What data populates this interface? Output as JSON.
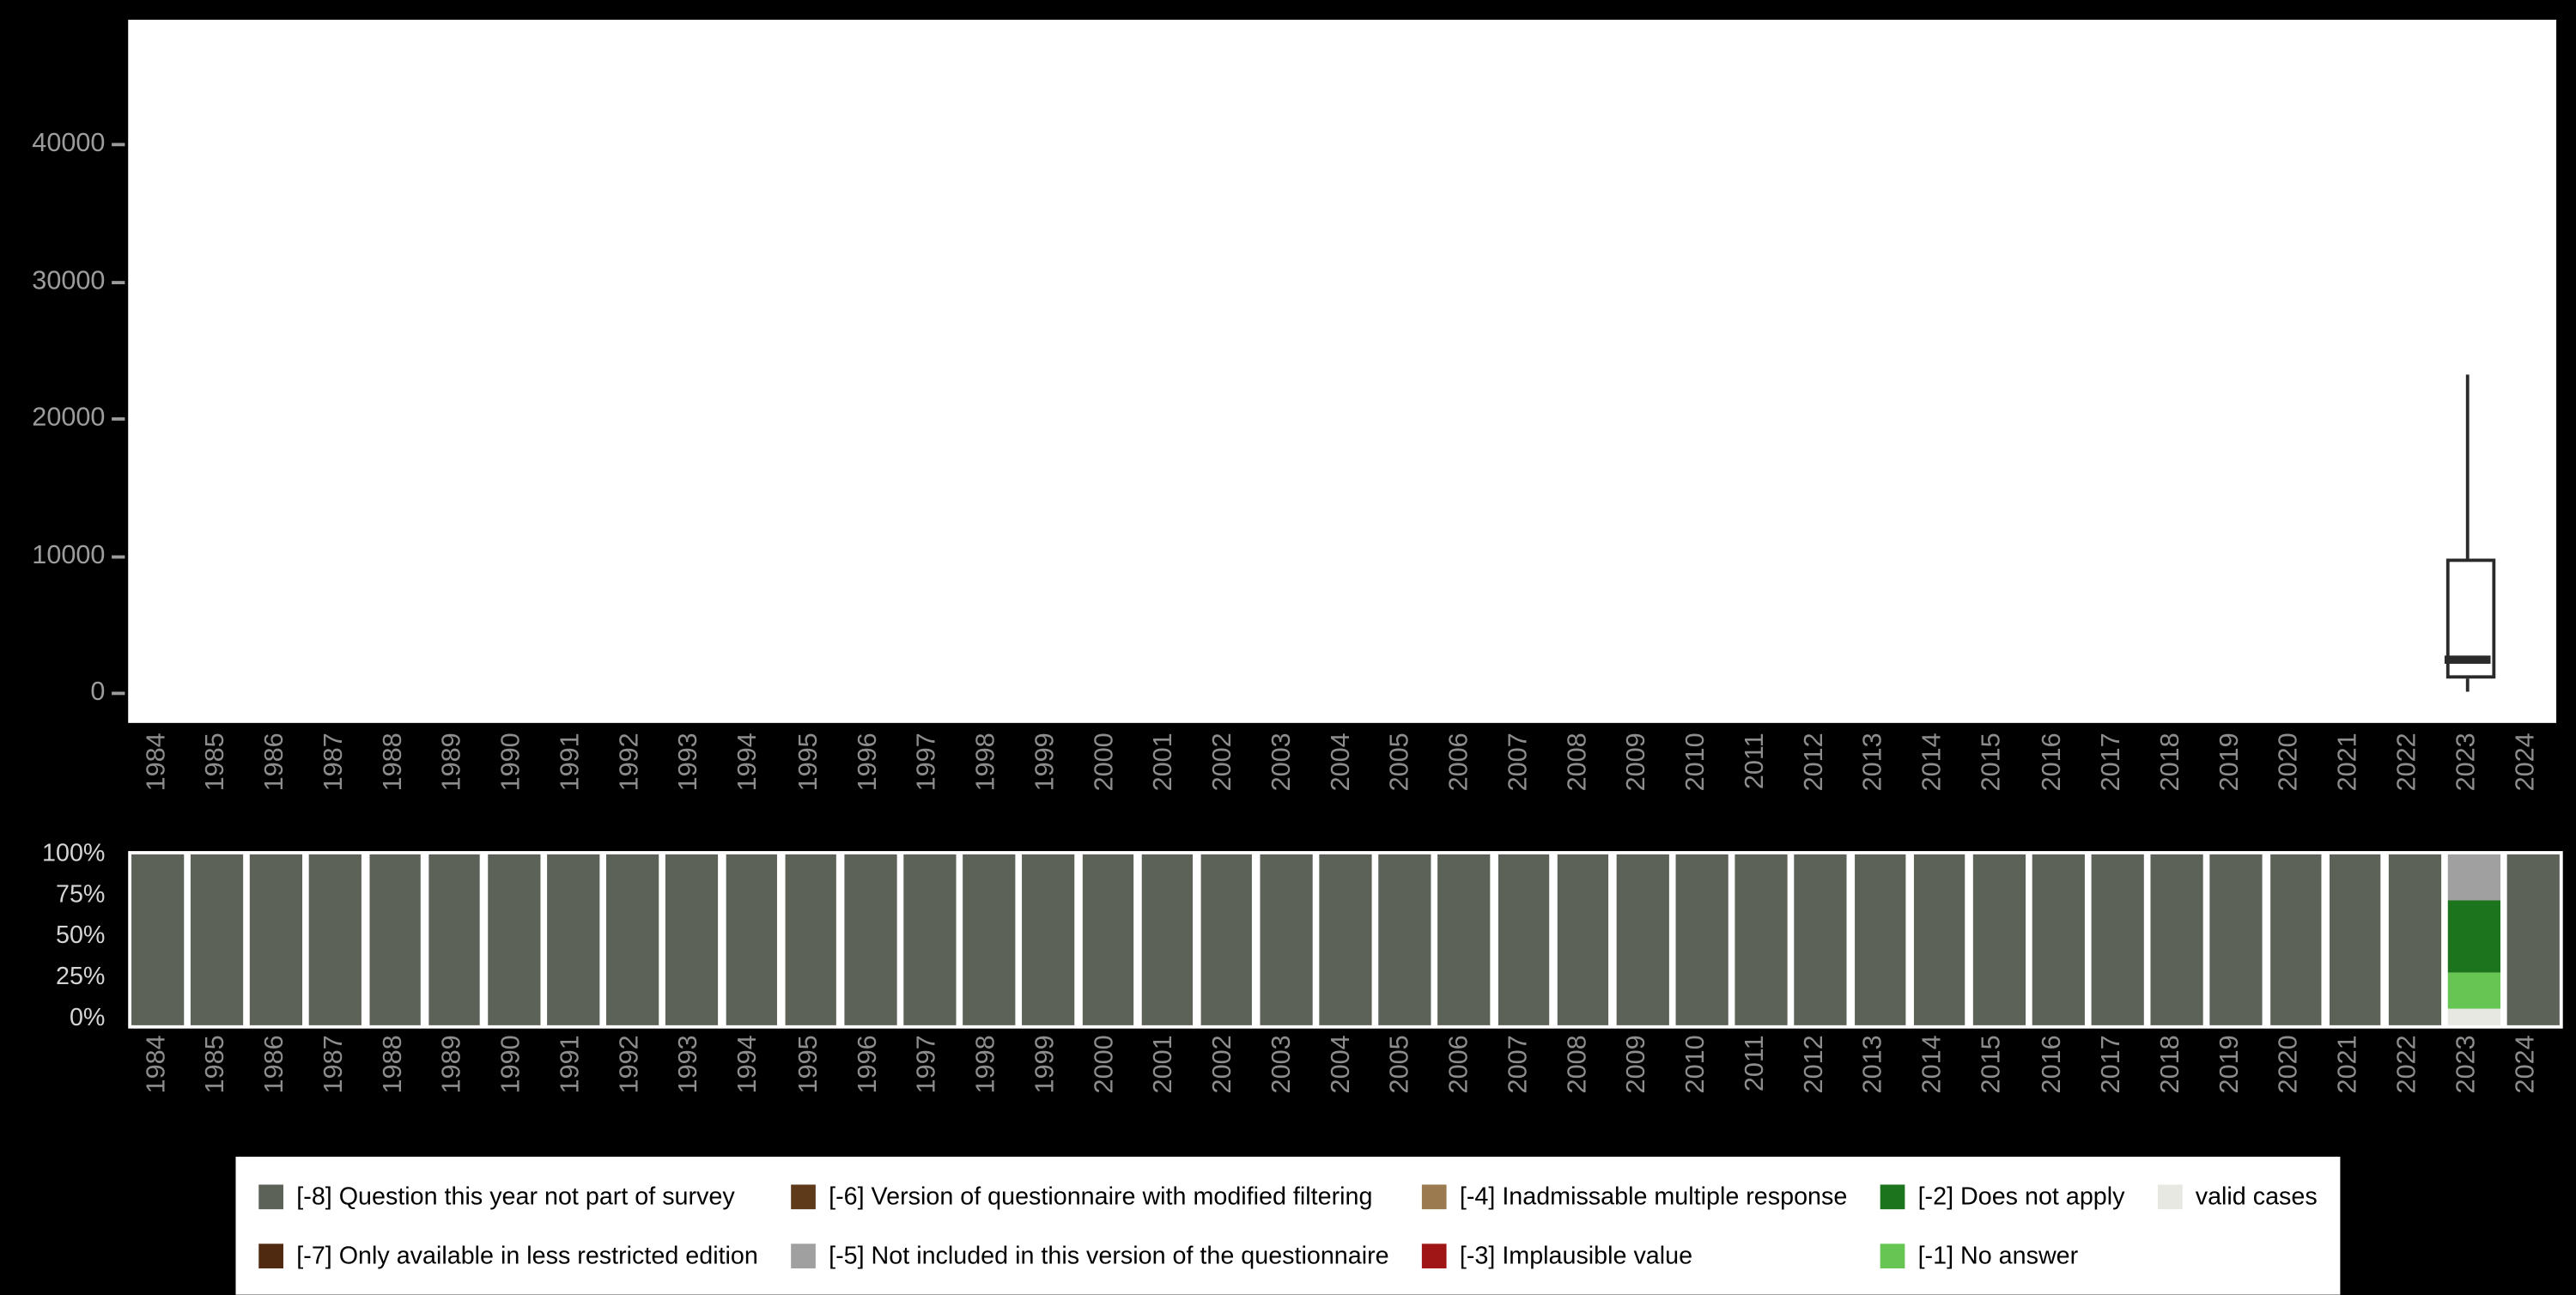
{
  "colors": {
    "background": "#000000",
    "panel": "#ffffff",
    "axis_text": "#8d8d8d",
    "percent_axis_text": "#d4d4d4",
    "boxplot_stroke": "#2a2a2a",
    "legend_text": "#000000"
  },
  "legend": {
    "items": [
      {
        "key": "m8",
        "label": "[-8] Question this year not part of survey",
        "color": "#5c6258"
      },
      {
        "key": "m7",
        "label": "[-7] Only available in less restricted edition",
        "color": "#4f2a10"
      },
      {
        "key": "m6",
        "label": "[-6] Version of questionnaire with modified filtering",
        "color": "#5e3a1a"
      },
      {
        "key": "m5",
        "label": "[-5] Not included in this version of the questionnaire",
        "color": "#a0a0a0"
      },
      {
        "key": "m4",
        "label": "[-4] Inadmissable multiple response",
        "color": "#9c7a50"
      },
      {
        "key": "m3",
        "label": "[-3] Implausible value",
        "color": "#a01515"
      },
      {
        "key": "m2",
        "label": "[-2] Does not apply",
        "color": "#1c741c"
      },
      {
        "key": "m1",
        "label": "[-1] No answer",
        "color": "#67c653"
      },
      {
        "key": "valid",
        "label": "valid cases",
        "color": "#e8e8e3"
      }
    ]
  },
  "chart_data": [
    {
      "type": "boxplot",
      "title": "",
      "xlabel": "",
      "ylabel": "",
      "ylim": [
        0,
        49000
      ],
      "yticks": [
        0,
        10000,
        20000,
        30000,
        40000
      ],
      "grid": false,
      "categories": [
        "1984",
        "1985",
        "1986",
        "1987",
        "1988",
        "1989",
        "1990",
        "1991",
        "1992",
        "1993",
        "1994",
        "1995",
        "1996",
        "1997",
        "1998",
        "1999",
        "2000",
        "2001",
        "2002",
        "2003",
        "2004",
        "2005",
        "2006",
        "2007",
        "2008",
        "2009",
        "2010",
        "2011",
        "2012",
        "2013",
        "2014",
        "2015",
        "2016",
        "2017",
        "2018",
        "2019",
        "2020",
        "2021",
        "2022",
        "2023",
        "2024"
      ],
      "boxes": [
        {
          "category": "2023",
          "whisker_low": 100,
          "q1": 1500,
          "median": 2400,
          "q3": 9800,
          "whisker_high": 23200
        }
      ]
    },
    {
      "type": "stacked_bar_percent",
      "title": "",
      "xlabel": "",
      "ylabel": "",
      "yticks": [
        "0%",
        "25%",
        "50%",
        "75%",
        "100%"
      ],
      "categories": [
        "1984",
        "1985",
        "1986",
        "1987",
        "1988",
        "1989",
        "1990",
        "1991",
        "1992",
        "1993",
        "1994",
        "1995",
        "1996",
        "1997",
        "1998",
        "1999",
        "2000",
        "2001",
        "2002",
        "2003",
        "2004",
        "2005",
        "2006",
        "2007",
        "2008",
        "2009",
        "2010",
        "2011",
        "2012",
        "2013",
        "2014",
        "2015",
        "2016",
        "2017",
        "2018",
        "2019",
        "2020",
        "2021",
        "2022",
        "2023",
        "2024"
      ],
      "segments": {
        "default": [
          {
            "label": "[-8] Question this year not part of survey",
            "pct": 100
          }
        ],
        "2023": [
          {
            "label": "valid cases",
            "pct": 10
          },
          {
            "label": "[-1] No answer",
            "pct": 21
          },
          {
            "label": "[-2] Does not apply",
            "pct": 42
          },
          {
            "label": "[-5] Not included in this version of the questionnaire",
            "pct": 27
          }
        ]
      }
    }
  ]
}
